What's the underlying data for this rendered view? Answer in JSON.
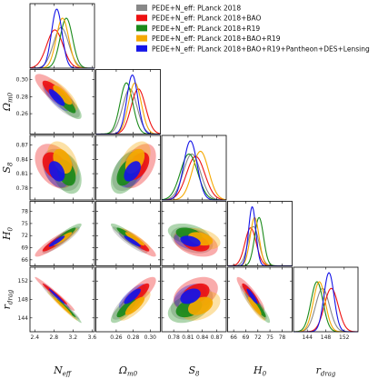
{
  "chart_data": {
    "type": "corner",
    "parameters": [
      {
        "key": "neff",
        "label": "N",
        "sub": "eff",
        "range": [
          2.3,
          3.65
        ],
        "ticks": [
          "2.4",
          "2.8",
          "3.2",
          "3.6"
        ]
      },
      {
        "key": "om",
        "label": "Ω",
        "sub": "m0",
        "range": [
          0.236,
          0.312
        ],
        "ticks": [
          "0.26",
          "0.28",
          "0.30"
        ]
      },
      {
        "key": "s8",
        "label": "S",
        "sub": "8",
        "range": [
          0.755,
          0.89
        ],
        "ticks": [
          "0.78",
          "0.81",
          "0.84",
          "0.87"
        ]
      },
      {
        "key": "h0",
        "label": "H",
        "sub": "0",
        "range": [
          64.5,
          80.5
        ],
        "ticks": [
          "66",
          "69",
          "72",
          "75",
          "78"
        ]
      },
      {
        "key": "rd",
        "label": "r",
        "sub": "drag",
        "range": [
          141,
          155
        ],
        "ticks": [
          "144",
          "148",
          "152"
        ]
      }
    ],
    "series": [
      {
        "name": "PEDE+N_eff: PLanck 2018",
        "color": "#888888",
        "mean": [
          2.95,
          0.276,
          0.818,
          70.9,
          147.3
        ],
        "sd": [
          0.16,
          0.0085,
          0.018,
          1.35,
          1.5
        ],
        "corr": [
          [
            1,
            -0.8,
            -0.35,
            0.9,
            -0.98
          ],
          [
            -0.8,
            1,
            0.45,
            -0.9,
            0.8
          ],
          [
            -0.35,
            0.45,
            1,
            -0.35,
            0.35
          ],
          [
            0.9,
            -0.9,
            -0.35,
            1,
            -0.9
          ],
          [
            -0.98,
            0.8,
            0.35,
            -0.9,
            1
          ]
        ]
      },
      {
        "name": "PEDE+N_eff: PLanck 2018+BAO",
        "color": "#ee1111",
        "mean": [
          2.82,
          0.286,
          0.826,
          70.2,
          149.2
        ],
        "sd": [
          0.17,
          0.0085,
          0.019,
          1.4,
          1.5
        ],
        "corr": [
          [
            1,
            -0.8,
            -0.35,
            0.9,
            -0.98
          ],
          [
            -0.8,
            1,
            0.45,
            -0.9,
            0.8
          ],
          [
            -0.35,
            0.45,
            1,
            -0.35,
            0.35
          ],
          [
            0.9,
            -0.9,
            -0.35,
            1,
            -0.9
          ],
          [
            -0.98,
            0.8,
            0.35,
            -0.9,
            1
          ]
        ]
      },
      {
        "name": "PEDE+N_eff: PLanck 2018+R19",
        "color": "#1a8a1a",
        "mean": [
          3.06,
          0.272,
          0.812,
          72.3,
          146.1
        ],
        "sd": [
          0.13,
          0.0075,
          0.018,
          1.1,
          1.3
        ],
        "corr": [
          [
            1,
            -0.8,
            -0.35,
            0.9,
            -0.98
          ],
          [
            -0.8,
            1,
            0.45,
            -0.9,
            0.8
          ],
          [
            -0.35,
            0.45,
            1,
            -0.35,
            0.35
          ],
          [
            0.9,
            -0.9,
            -0.35,
            1,
            -0.9
          ],
          [
            -0.98,
            0.8,
            0.35,
            -0.9,
            1
          ]
        ]
      },
      {
        "name": "PEDE+N_eff: PLanck 2018+BAO+R19",
        "color": "#f5a800",
        "mean": [
          2.98,
          0.282,
          0.836,
          71.2,
          146.6
        ],
        "sd": [
          0.13,
          0.0075,
          0.017,
          1.1,
          1.3
        ],
        "corr": [
          [
            1,
            -0.8,
            -0.35,
            0.9,
            -0.98
          ],
          [
            -0.8,
            1,
            0.45,
            -0.9,
            0.8
          ],
          [
            -0.35,
            0.45,
            1,
            -0.35,
            0.35
          ],
          [
            0.9,
            -0.9,
            -0.35,
            1,
            -0.9
          ],
          [
            -0.98,
            0.8,
            0.35,
            -0.9,
            1
          ]
        ]
      },
      {
        "name": "PEDE+N_eff: PLanck 2018+BAO+R19+Pantheon+DES+Lensing",
        "color": "#1414e8",
        "mean": [
          2.86,
          0.279,
          0.815,
          70.6,
          148.7
        ],
        "sd": [
          0.11,
          0.0065,
          0.014,
          0.9,
          1.1
        ],
        "corr": [
          [
            1,
            -0.8,
            -0.35,
            0.9,
            -0.98
          ],
          [
            -0.8,
            1,
            0.45,
            -0.9,
            0.8
          ],
          [
            -0.35,
            0.45,
            1,
            -0.35,
            0.35
          ],
          [
            0.9,
            -0.9,
            -0.35,
            1,
            -0.9
          ],
          [
            -0.98,
            0.8,
            0.35,
            -0.9,
            1
          ]
        ]
      }
    ],
    "contours": "68% and 95% credible regions",
    "grid": false,
    "legend_position": "top-right"
  }
}
